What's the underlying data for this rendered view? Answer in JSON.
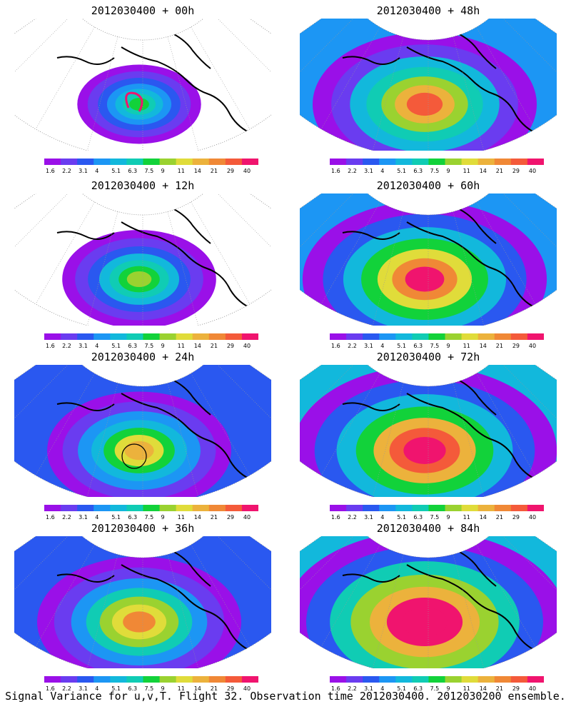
{
  "caption": "Signal Variance for u,v,T. Flight 32. Observation time 2012030400. 2012030200 ensemble.",
  "colorbar": {
    "ticks": [
      "1.6",
      "2.2",
      "3.1",
      "4",
      "5.1",
      "6.3",
      "7.5",
      "9",
      "11",
      "14",
      "21",
      "29",
      "40"
    ],
    "colors": [
      "#9a10e8",
      "#6a3cf0",
      "#2a58f0",
      "#1c96f4",
      "#12b8dc",
      "#10ccb4",
      "#12d23a",
      "#9ad230",
      "#e0dc3a",
      "#ecb23c",
      "#f08836",
      "#f45a3a",
      "#f0146e"
    ]
  },
  "panels": [
    {
      "title": "2012030400 + 00h",
      "intensity": 0.15,
      "marker": "loop"
    },
    {
      "title": "2012030400 + 48h",
      "intensity": 0.65,
      "marker": "none"
    },
    {
      "title": "2012030400 + 12h",
      "intensity": 0.3,
      "marker": "none"
    },
    {
      "title": "2012030400 + 60h",
      "intensity": 0.75,
      "marker": "none"
    },
    {
      "title": "2012030400 + 24h",
      "intensity": 0.45,
      "marker": "circle"
    },
    {
      "title": "2012030400 + 72h",
      "intensity": 0.85,
      "marker": "none"
    },
    {
      "title": "2012030400 + 36h",
      "intensity": 0.55,
      "marker": "none"
    },
    {
      "title": "2012030400 + 84h",
      "intensity": 0.95,
      "marker": "none"
    }
  ]
}
